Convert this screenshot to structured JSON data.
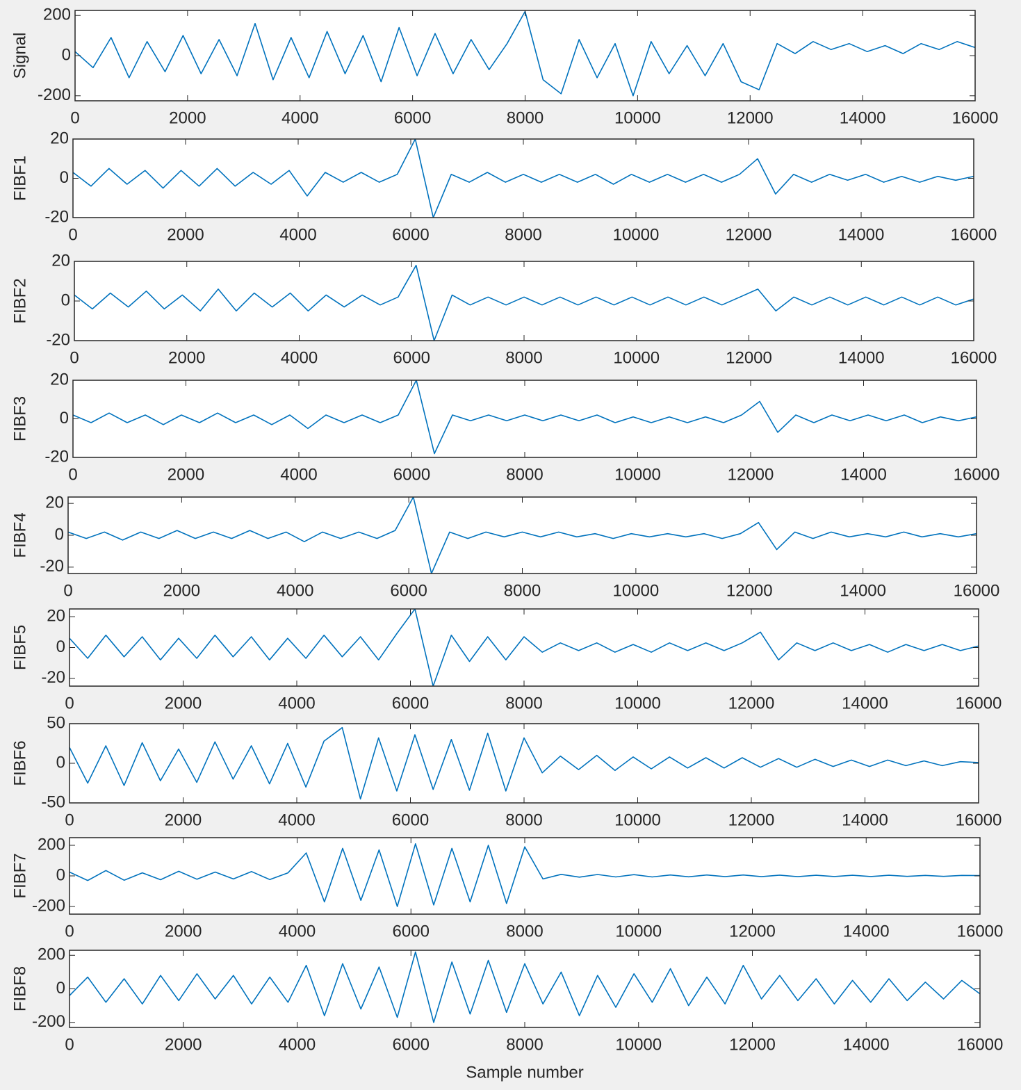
{
  "chart_data": [
    {
      "type": "line",
      "ylabel": "Signal",
      "color": "#0072bd",
      "xlim": [
        0,
        16000
      ],
      "xticks": [
        0,
        2000,
        4000,
        6000,
        8000,
        10000,
        12000,
        14000,
        16000
      ],
      "ylim": [
        -225,
        225
      ],
      "yticks": [
        -200,
        0,
        200
      ],
      "x": [
        0,
        320,
        640,
        960,
        1280,
        1600,
        1920,
        2240,
        2560,
        2880,
        3200,
        3520,
        3840,
        4160,
        4480,
        4800,
        5120,
        5440,
        5760,
        6080,
        6400,
        6720,
        7040,
        7360,
        7680,
        8000,
        8320,
        8640,
        8960,
        9280,
        9600,
        9920,
        10240,
        10560,
        10880,
        11200,
        11520,
        11840,
        12160,
        12480,
        12800,
        13120,
        13440,
        13760,
        14080,
        14400,
        14720,
        15040,
        15360,
        15680,
        16000
      ],
      "values": [
        20,
        -60,
        90,
        -110,
        70,
        -80,
        100,
        -90,
        80,
        -100,
        160,
        -120,
        90,
        -110,
        120,
        -90,
        100,
        -130,
        140,
        -100,
        110,
        -90,
        80,
        -70,
        60,
        220,
        -120,
        -190,
        80,
        -110,
        60,
        -200,
        70,
        -90,
        50,
        -100,
        60,
        -130,
        -170,
        60,
        10,
        70,
        30,
        60,
        20,
        50,
        10,
        60,
        30,
        70,
        40
      ]
    },
    {
      "type": "line",
      "ylabel": "FIBF1",
      "color": "#0072bd",
      "xlim": [
        0,
        16000
      ],
      "xticks": [
        0,
        2000,
        4000,
        6000,
        8000,
        10000,
        12000,
        14000,
        16000
      ],
      "ylim": [
        -20,
        20
      ],
      "yticks": [
        -20,
        0,
        20
      ],
      "x": [
        0,
        320,
        640,
        960,
        1280,
        1600,
        1920,
        2240,
        2560,
        2880,
        3200,
        3520,
        3840,
        4160,
        4480,
        4800,
        5120,
        5440,
        5760,
        6080,
        6400,
        6720,
        7040,
        7360,
        7680,
        8000,
        8320,
        8640,
        8960,
        9280,
        9600,
        9920,
        10240,
        10560,
        10880,
        11200,
        11520,
        11840,
        12160,
        12480,
        12800,
        13120,
        13440,
        13760,
        14080,
        14400,
        14720,
        15040,
        15360,
        15680,
        16000
      ],
      "values": [
        3,
        -4,
        5,
        -3,
        4,
        -5,
        4,
        -4,
        5,
        -4,
        3,
        -3,
        4,
        -9,
        3,
        -2,
        3,
        -2,
        2,
        20,
        -20,
        2,
        -2,
        3,
        -2,
        2,
        -2,
        2,
        -2,
        2,
        -3,
        2,
        -2,
        2,
        -2,
        2,
        -2,
        2,
        10,
        -8,
        2,
        -2,
        2,
        -1,
        2,
        -2,
        1,
        -2,
        1,
        -1,
        1
      ]
    },
    {
      "type": "line",
      "ylabel": "FIBF2",
      "color": "#0072bd",
      "xlim": [
        0,
        16000
      ],
      "xticks": [
        0,
        2000,
        4000,
        6000,
        8000,
        10000,
        12000,
        14000,
        16000
      ],
      "ylim": [
        -20,
        20
      ],
      "yticks": [
        -20,
        0,
        20
      ],
      "x": [
        0,
        320,
        640,
        960,
        1280,
        1600,
        1920,
        2240,
        2560,
        2880,
        3200,
        3520,
        3840,
        4160,
        4480,
        4800,
        5120,
        5440,
        5760,
        6080,
        6400,
        6720,
        7040,
        7360,
        7680,
        8000,
        8320,
        8640,
        8960,
        9280,
        9600,
        9920,
        10240,
        10560,
        10880,
        11200,
        11520,
        11840,
        12160,
        12480,
        12800,
        13120,
        13440,
        13760,
        14080,
        14400,
        14720,
        15040,
        15360,
        15680,
        16000
      ],
      "values": [
        3,
        -4,
        4,
        -3,
        5,
        -4,
        3,
        -5,
        6,
        -5,
        4,
        -3,
        4,
        -5,
        3,
        -3,
        3,
        -2,
        2,
        18,
        -20,
        3,
        -2,
        2,
        -2,
        2,
        -2,
        2,
        -2,
        2,
        -2,
        2,
        -2,
        2,
        -2,
        2,
        -2,
        2,
        6,
        -5,
        2,
        -2,
        2,
        -2,
        2,
        -2,
        2,
        -2,
        2,
        -2,
        1
      ]
    },
    {
      "type": "line",
      "ylabel": "FIBF3",
      "color": "#0072bd",
      "xlim": [
        0,
        16000
      ],
      "xticks": [
        0,
        2000,
        4000,
        6000,
        8000,
        10000,
        12000,
        14000,
        16000
      ],
      "ylim": [
        -20,
        20
      ],
      "yticks": [
        -20,
        0,
        20
      ],
      "x": [
        0,
        320,
        640,
        960,
        1280,
        1600,
        1920,
        2240,
        2560,
        2880,
        3200,
        3520,
        3840,
        4160,
        4480,
        4800,
        5120,
        5440,
        5760,
        6080,
        6400,
        6720,
        7040,
        7360,
        7680,
        8000,
        8320,
        8640,
        8960,
        9280,
        9600,
        9920,
        10240,
        10560,
        10880,
        11200,
        11520,
        11840,
        12160,
        12480,
        12800,
        13120,
        13440,
        13760,
        14080,
        14400,
        14720,
        15040,
        15360,
        15680,
        16000
      ],
      "values": [
        2,
        -2,
        3,
        -2,
        2,
        -3,
        2,
        -2,
        3,
        -2,
        2,
        -3,
        2,
        -5,
        2,
        -2,
        2,
        -2,
        2,
        20,
        -18,
        2,
        -1,
        2,
        -1,
        2,
        -1,
        2,
        -1,
        2,
        -2,
        1,
        -2,
        1,
        -2,
        1,
        -2,
        2,
        9,
        -7,
        2,
        -2,
        2,
        -1,
        2,
        -1,
        2,
        -2,
        1,
        -1,
        1
      ]
    },
    {
      "type": "line",
      "ylabel": "FIBF4",
      "color": "#0072bd",
      "xlim": [
        0,
        16000
      ],
      "xticks": [
        0,
        2000,
        4000,
        6000,
        8000,
        10000,
        12000,
        14000,
        16000
      ],
      "ylim": [
        -24,
        24
      ],
      "yticks": [
        -20,
        0,
        20
      ],
      "x": [
        0,
        320,
        640,
        960,
        1280,
        1600,
        1920,
        2240,
        2560,
        2880,
        3200,
        3520,
        3840,
        4160,
        4480,
        4800,
        5120,
        5440,
        5760,
        6080,
        6400,
        6720,
        7040,
        7360,
        7680,
        8000,
        8320,
        8640,
        8960,
        9280,
        9600,
        9920,
        10240,
        10560,
        10880,
        11200,
        11520,
        11840,
        12160,
        12480,
        12800,
        13120,
        13440,
        13760,
        14080,
        14400,
        14720,
        15040,
        15360,
        15680,
        16000
      ],
      "values": [
        2,
        -2,
        2,
        -3,
        2,
        -2,
        3,
        -2,
        2,
        -2,
        3,
        -2,
        2,
        -4,
        2,
        -2,
        2,
        -2,
        3,
        24,
        -24,
        2,
        -2,
        2,
        -1,
        2,
        -1,
        2,
        -1,
        1,
        -2,
        1,
        -1,
        1,
        -1,
        1,
        -2,
        1,
        8,
        -9,
        2,
        -2,
        2,
        -1,
        1,
        -1,
        2,
        -1,
        1,
        -1,
        1
      ]
    },
    {
      "type": "line",
      "ylabel": "FIBF5",
      "color": "#0072bd",
      "xlim": [
        0,
        16000
      ],
      "xticks": [
        0,
        2000,
        4000,
        6000,
        8000,
        10000,
        12000,
        14000,
        16000
      ],
      "ylim": [
        -25,
        25
      ],
      "yticks": [
        -20,
        0,
        20
      ],
      "x": [
        0,
        320,
        640,
        960,
        1280,
        1600,
        1920,
        2240,
        2560,
        2880,
        3200,
        3520,
        3840,
        4160,
        4480,
        4800,
        5120,
        5440,
        5760,
        6080,
        6400,
        6720,
        7040,
        7360,
        7680,
        8000,
        8320,
        8640,
        8960,
        9280,
        9600,
        9920,
        10240,
        10560,
        10880,
        11200,
        11520,
        11840,
        12160,
        12480,
        12800,
        13120,
        13440,
        13760,
        14080,
        14400,
        14720,
        15040,
        15360,
        15680,
        16000
      ],
      "values": [
        6,
        -7,
        8,
        -6,
        7,
        -8,
        6,
        -7,
        8,
        -6,
        7,
        -8,
        6,
        -7,
        8,
        -6,
        7,
        -8,
        9,
        25,
        -25,
        8,
        -9,
        7,
        -8,
        7,
        -3,
        3,
        -2,
        3,
        -3,
        2,
        -3,
        3,
        -2,
        3,
        -2,
        3,
        10,
        -8,
        3,
        -2,
        3,
        -2,
        2,
        -3,
        2,
        -2,
        2,
        -2,
        1
      ]
    },
    {
      "type": "line",
      "ylabel": "FIBF6",
      "color": "#0072bd",
      "xlim": [
        0,
        16000
      ],
      "xticks": [
        0,
        2000,
        4000,
        6000,
        8000,
        10000,
        12000,
        14000,
        16000
      ],
      "ylim": [
        -50,
        50
      ],
      "yticks": [
        -50,
        0,
        50
      ],
      "x": [
        0,
        320,
        640,
        960,
        1280,
        1600,
        1920,
        2240,
        2560,
        2880,
        3200,
        3520,
        3840,
        4160,
        4480,
        4800,
        5120,
        5440,
        5760,
        6080,
        6400,
        6720,
        7040,
        7360,
        7680,
        8000,
        8320,
        8640,
        8960,
        9280,
        9600,
        9920,
        10240,
        10560,
        10880,
        11200,
        11520,
        11840,
        12160,
        12480,
        12800,
        13120,
        13440,
        13760,
        14080,
        14400,
        14720,
        15040,
        15360,
        15680,
        16000
      ],
      "values": [
        20,
        -25,
        22,
        -28,
        26,
        -22,
        18,
        -24,
        27,
        -20,
        22,
        -26,
        25,
        -30,
        28,
        45,
        -45,
        32,
        -35,
        36,
        -33,
        30,
        -34,
        38,
        -35,
        32,
        -12,
        9,
        -8,
        10,
        -9,
        8,
        -7,
        8,
        -6,
        7,
        -6,
        7,
        -5,
        6,
        -5,
        5,
        -4,
        4,
        -4,
        4,
        -3,
        3,
        -3,
        2,
        1
      ]
    },
    {
      "type": "line",
      "ylabel": "FIBF7",
      "color": "#0072bd",
      "xlim": [
        0,
        16000
      ],
      "xticks": [
        0,
        2000,
        4000,
        6000,
        8000,
        10000,
        12000,
        14000,
        16000
      ],
      "ylim": [
        -250,
        250
      ],
      "yticks": [
        -200,
        0,
        200
      ],
      "x": [
        0,
        320,
        640,
        960,
        1280,
        1600,
        1920,
        2240,
        2560,
        2880,
        3200,
        3520,
        3840,
        4160,
        4480,
        4800,
        5120,
        5440,
        5760,
        6080,
        6400,
        6720,
        7040,
        7360,
        7680,
        8000,
        8320,
        8640,
        8960,
        9280,
        9600,
        9920,
        10240,
        10560,
        10880,
        11200,
        11520,
        11840,
        12160,
        12480,
        12800,
        13120,
        13440,
        13760,
        14080,
        14400,
        14720,
        15040,
        15360,
        15680,
        16000
      ],
      "values": [
        25,
        -30,
        35,
        -28,
        20,
        -25,
        30,
        -22,
        25,
        -20,
        28,
        -24,
        20,
        150,
        -170,
        180,
        -160,
        170,
        -200,
        210,
        -190,
        180,
        -170,
        200,
        -180,
        190,
        -20,
        10,
        -8,
        9,
        -7,
        8,
        -7,
        6,
        -6,
        6,
        -5,
        6,
        -5,
        5,
        -5,
        4,
        -4,
        4,
        -4,
        4,
        -3,
        3,
        -3,
        3,
        2
      ]
    },
    {
      "type": "line",
      "ylabel": "FIBF8",
      "xlabel": "Sample number",
      "color": "#0072bd",
      "xlim": [
        0,
        16000
      ],
      "xticks": [
        0,
        2000,
        4000,
        6000,
        8000,
        10000,
        12000,
        14000,
        16000
      ],
      "ylim": [
        -230,
        230
      ],
      "yticks": [
        -200,
        0,
        200
      ],
      "x": [
        0,
        320,
        640,
        960,
        1280,
        1600,
        1920,
        2240,
        2560,
        2880,
        3200,
        3520,
        3840,
        4160,
        4480,
        4800,
        5120,
        5440,
        5760,
        6080,
        6400,
        6720,
        7040,
        7360,
        7680,
        8000,
        8320,
        8640,
        8960,
        9280,
        9600,
        9920,
        10240,
        10560,
        10880,
        11200,
        11520,
        11840,
        12160,
        12480,
        12800,
        13120,
        13440,
        13760,
        14080,
        14400,
        14720,
        15040,
        15360,
        15680,
        16000
      ],
      "values": [
        -40,
        70,
        -80,
        60,
        -90,
        80,
        -70,
        90,
        -60,
        80,
        -90,
        70,
        -80,
        140,
        -160,
        150,
        -120,
        130,
        -170,
        220,
        -200,
        160,
        -150,
        170,
        -140,
        150,
        -90,
        100,
        -160,
        80,
        -110,
        90,
        -80,
        120,
        -100,
        70,
        -90,
        140,
        -60,
        80,
        -70,
        60,
        -90,
        50,
        -80,
        60,
        -70,
        40,
        -60,
        50,
        -30
      ]
    }
  ]
}
